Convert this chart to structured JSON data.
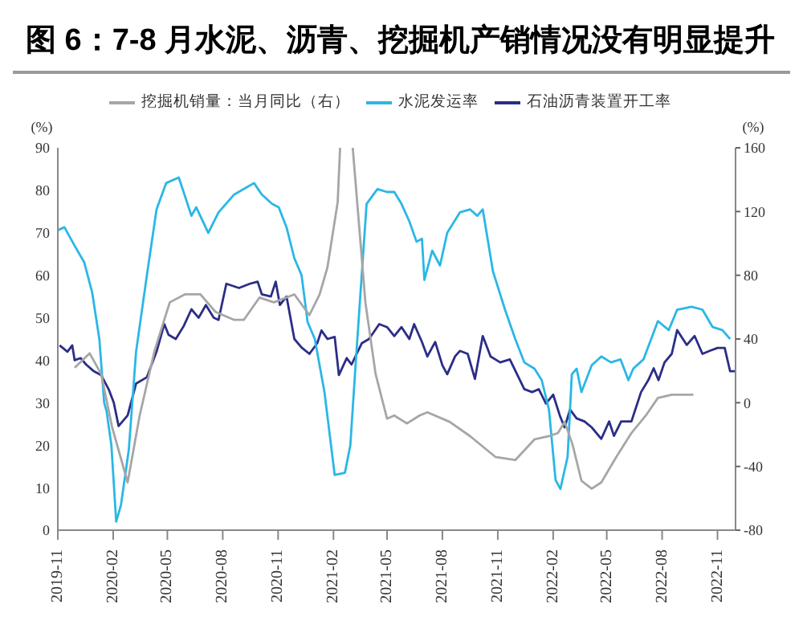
{
  "chart_data": {
    "type": "line",
    "title": "图 6：7-8 月水泥、沥青、挖掘机产销情况没有明显提升",
    "ylabel": "(%)",
    "y2label": "(%)",
    "legend": "top",
    "marker": "none",
    "line_style": "solid",
    "xlim": [
      "2019-11",
      "2022-12"
    ],
    "xticks": [
      "2019-11",
      "2020-02",
      "2020-05",
      "2020-08",
      "2020-11",
      "2021-02",
      "2021-05",
      "2021-08",
      "2021-11",
      "2022-02",
      "2022-05",
      "2022-08",
      "2022-11"
    ],
    "ylim": [
      0,
      90
    ],
    "yticks": [
      0,
      10,
      20,
      30,
      40,
      50,
      60,
      70,
      80,
      90
    ],
    "y2lim": [
      -80,
      160
    ],
    "y2ticks": [
      -80,
      -40,
      0,
      40,
      80,
      120,
      160
    ],
    "series": [
      {
        "name": "石油沥青装置开工率",
        "color": "#2b2d87",
        "x": [
          "2019-11-04",
          "2019-11-17",
          "2019-11-25",
          "2019-11-29",
          "2019-12-09",
          "2019-12-18",
          "2019-12-30",
          "2020-01-12",
          "2020-01-25",
          "2020-02-02",
          "2020-02-10",
          "2020-02-25",
          "2020-03-10",
          "2020-03-28",
          "2020-04-13",
          "2020-04-26",
          "2020-05-03",
          "2020-05-15",
          "2020-05-28",
          "2020-06-10",
          "2020-06-22",
          "2020-07-04",
          "2020-07-17",
          "2020-07-25",
          "2020-08-07",
          "2020-08-28",
          "2020-09-15",
          "2020-09-28",
          "2020-10-05",
          "2020-10-20",
          "2020-10-28",
          "2020-11-04",
          "2020-11-15",
          "2020-11-28",
          "2020-12-10",
          "2020-12-23",
          "2021-01-05",
          "2021-01-12",
          "2021-01-22",
          "2021-02-03",
          "2021-02-10",
          "2021-02-23",
          "2021-03-03",
          "2021-03-20",
          "2021-04-01",
          "2021-04-18",
          "2021-05-01",
          "2021-05-13",
          "2021-05-25",
          "2021-06-07",
          "2021-06-15",
          "2021-06-28",
          "2021-07-07",
          "2021-07-20",
          "2021-08-01",
          "2021-08-09",
          "2021-08-22",
          "2021-08-30",
          "2021-09-12",
          "2021-09-24",
          "2021-10-07",
          "2021-10-20",
          "2021-11-05",
          "2021-11-21",
          "2021-12-03",
          "2021-12-15",
          "2021-12-28",
          "2022-01-08",
          "2022-01-20",
          "2022-02-01",
          "2022-02-12",
          "2022-02-20",
          "2022-03-01",
          "2022-03-12",
          "2022-03-25",
          "2022-04-06",
          "2022-04-22",
          "2022-05-05",
          "2022-05-13",
          "2022-05-25",
          "2022-06-11",
          "2022-06-27",
          "2022-07-09",
          "2022-07-18",
          "2022-07-26",
          "2022-08-05",
          "2022-08-17",
          "2022-08-26",
          "2022-09-11",
          "2022-09-24",
          "2022-10-07",
          "2022-10-19",
          "2022-11-01",
          "2022-11-13",
          "2022-11-22",
          "2022-12-01"
        ],
        "values": [
          43.5,
          42,
          43.5,
          40,
          40.5,
          39,
          37.5,
          36.5,
          33,
          30,
          24.5,
          27,
          34.5,
          36,
          42,
          48.5,
          46,
          45,
          48,
          52,
          50,
          53,
          50,
          49.5,
          58,
          57,
          58,
          58.5,
          55.5,
          55,
          58.5,
          53,
          55,
          45,
          43,
          41.5,
          44,
          47,
          45,
          45.5,
          36.5,
          40.5,
          39,
          44,
          45,
          48.5,
          47.8,
          45.7,
          47.8,
          45,
          48.5,
          44.3,
          40.9,
          44.3,
          38.8,
          36.7,
          40.9,
          42.2,
          41.5,
          35.6,
          45.7,
          40.9,
          39.5,
          40.2,
          36.7,
          33.2,
          32.5,
          33.2,
          29.8,
          31.9,
          27,
          24.2,
          28.4,
          26.3,
          25.6,
          24.2,
          21.5,
          25.6,
          22.2,
          25.6,
          25.6,
          32.5,
          35.3,
          38.1,
          35.3,
          39.5,
          41.5,
          47.1,
          43.6,
          45.7,
          41.5,
          42.2,
          42.9,
          42.9,
          37.4,
          37.4
        ]
      },
      {
        "name": "水泥发运率",
        "color": "#2ab7e6",
        "x": [
          "2019-11-01",
          "2019-11-12",
          "2019-11-28",
          "2019-12-15",
          "2019-12-28",
          "2020-01-09",
          "2020-01-17",
          "2020-01-21",
          "2020-01-29",
          "2020-02-06",
          "2020-02-14",
          "2020-02-27",
          "2020-03-10",
          "2020-03-28",
          "2020-04-13",
          "2020-04-29",
          "2020-05-20",
          "2020-05-28",
          "2020-06-10",
          "2020-06-18",
          "2020-07-08",
          "2020-07-25",
          "2020-08-20",
          "2020-09-05",
          "2020-09-22",
          "2020-10-05",
          "2020-10-22",
          "2020-11-02",
          "2020-11-15",
          "2020-11-28",
          "2020-12-10",
          "2020-12-20",
          "2021-01-01",
          "2021-01-17",
          "2021-02-03",
          "2021-02-20",
          "2021-03-01",
          "2021-03-10",
          "2021-03-28",
          "2021-04-15",
          "2021-05-01",
          "2021-05-13",
          "2021-05-25",
          "2021-06-07",
          "2021-06-19",
          "2021-06-28",
          "2021-07-02",
          "2021-07-15",
          "2021-07-28",
          "2021-08-09",
          "2021-08-30",
          "2021-09-16",
          "2021-09-28",
          "2021-10-07",
          "2021-10-24",
          "2021-11-13",
          "2021-11-30",
          "2021-12-15",
          "2022-01-01",
          "2022-01-13",
          "2022-01-25",
          "2022-02-05",
          "2022-02-13",
          "2022-02-25",
          "2022-03-04",
          "2022-03-12",
          "2022-03-20",
          "2022-04-06",
          "2022-04-22",
          "2022-05-08",
          "2022-05-24",
          "2022-06-06",
          "2022-06-14",
          "2022-07-01",
          "2022-07-25",
          "2022-08-12",
          "2022-08-26",
          "2022-09-19",
          "2022-10-07",
          "2022-10-24",
          "2022-11-09",
          "2022-11-22"
        ],
        "values": [
          70.6,
          71.3,
          67.2,
          63,
          56,
          45,
          30,
          28,
          20,
          2,
          6,
          19,
          42,
          60,
          75.5,
          81.7,
          83,
          79.6,
          74,
          76,
          70,
          74.8,
          79,
          80.3,
          81.7,
          79,
          76.8,
          76,
          71.3,
          64,
          60,
          49,
          45,
          32.5,
          13,
          13.5,
          20,
          39.5,
          76.8,
          80.3,
          79.6,
          79.6,
          76.8,
          72.7,
          67.9,
          68.6,
          58.9,
          65.8,
          62.3,
          70,
          74.8,
          75.5,
          74,
          75.5,
          60.9,
          51.9,
          45,
          39.5,
          38,
          35.3,
          28.4,
          11.8,
          9.7,
          17.3,
          36.7,
          38,
          32.5,
          38.8,
          40.9,
          39.5,
          40.2,
          35.3,
          38,
          40.2,
          49.2,
          47.1,
          51.9,
          52.6,
          51.9,
          47.8,
          47.1,
          45
        ]
      },
      {
        "name": "挖掘机销量：当月同比（右）",
        "color": "#a6a6a6",
        "axis": "y2",
        "x": [
          "2019-11-29",
          "2019-12-24",
          "2020-01-12",
          "2020-01-30",
          "2020-02-25",
          "2020-03-16",
          "2020-04-10",
          "2020-05-05",
          "2020-05-30",
          "2020-06-25",
          "2020-07-20",
          "2020-08-20",
          "2020-09-05",
          "2020-10-01",
          "2020-10-25",
          "2020-11-28",
          "2020-12-23",
          "2021-01-09",
          "2021-01-22",
          "2021-02-08",
          "2021-02-12",
          "2021-02-25",
          "2021-03-05",
          "2021-03-26",
          "2021-04-12",
          "2021-05-01",
          "2021-05-13",
          "2021-06-03",
          "2021-06-24",
          "2021-07-07",
          "2021-08-13",
          "2021-09-16",
          "2021-10-28",
          "2021-11-30",
          "2022-01-01",
          "2022-01-25",
          "2022-02-09",
          "2022-02-20",
          "2022-03-05",
          "2022-03-20",
          "2022-04-06",
          "2022-04-22",
          "2022-05-17",
          "2022-06-11",
          "2022-07-05",
          "2022-07-25",
          "2022-08-17",
          "2022-09-22"
        ],
        "values": [
          22,
          31,
          18,
          -15,
          -50,
          -8,
          33,
          63,
          68,
          68,
          57,
          52,
          52,
          66,
          63,
          68,
          55,
          68,
          85,
          126,
          160,
          null,
          160,
          63,
          18,
          -10,
          -8,
          -13,
          -8,
          -6,
          -12,
          -21,
          -34,
          -36,
          -23,
          -21,
          -19,
          -12,
          -26,
          -49,
          -54,
          -50,
          -34,
          -19,
          -8,
          3,
          5,
          5
        ]
      }
    ]
  }
}
